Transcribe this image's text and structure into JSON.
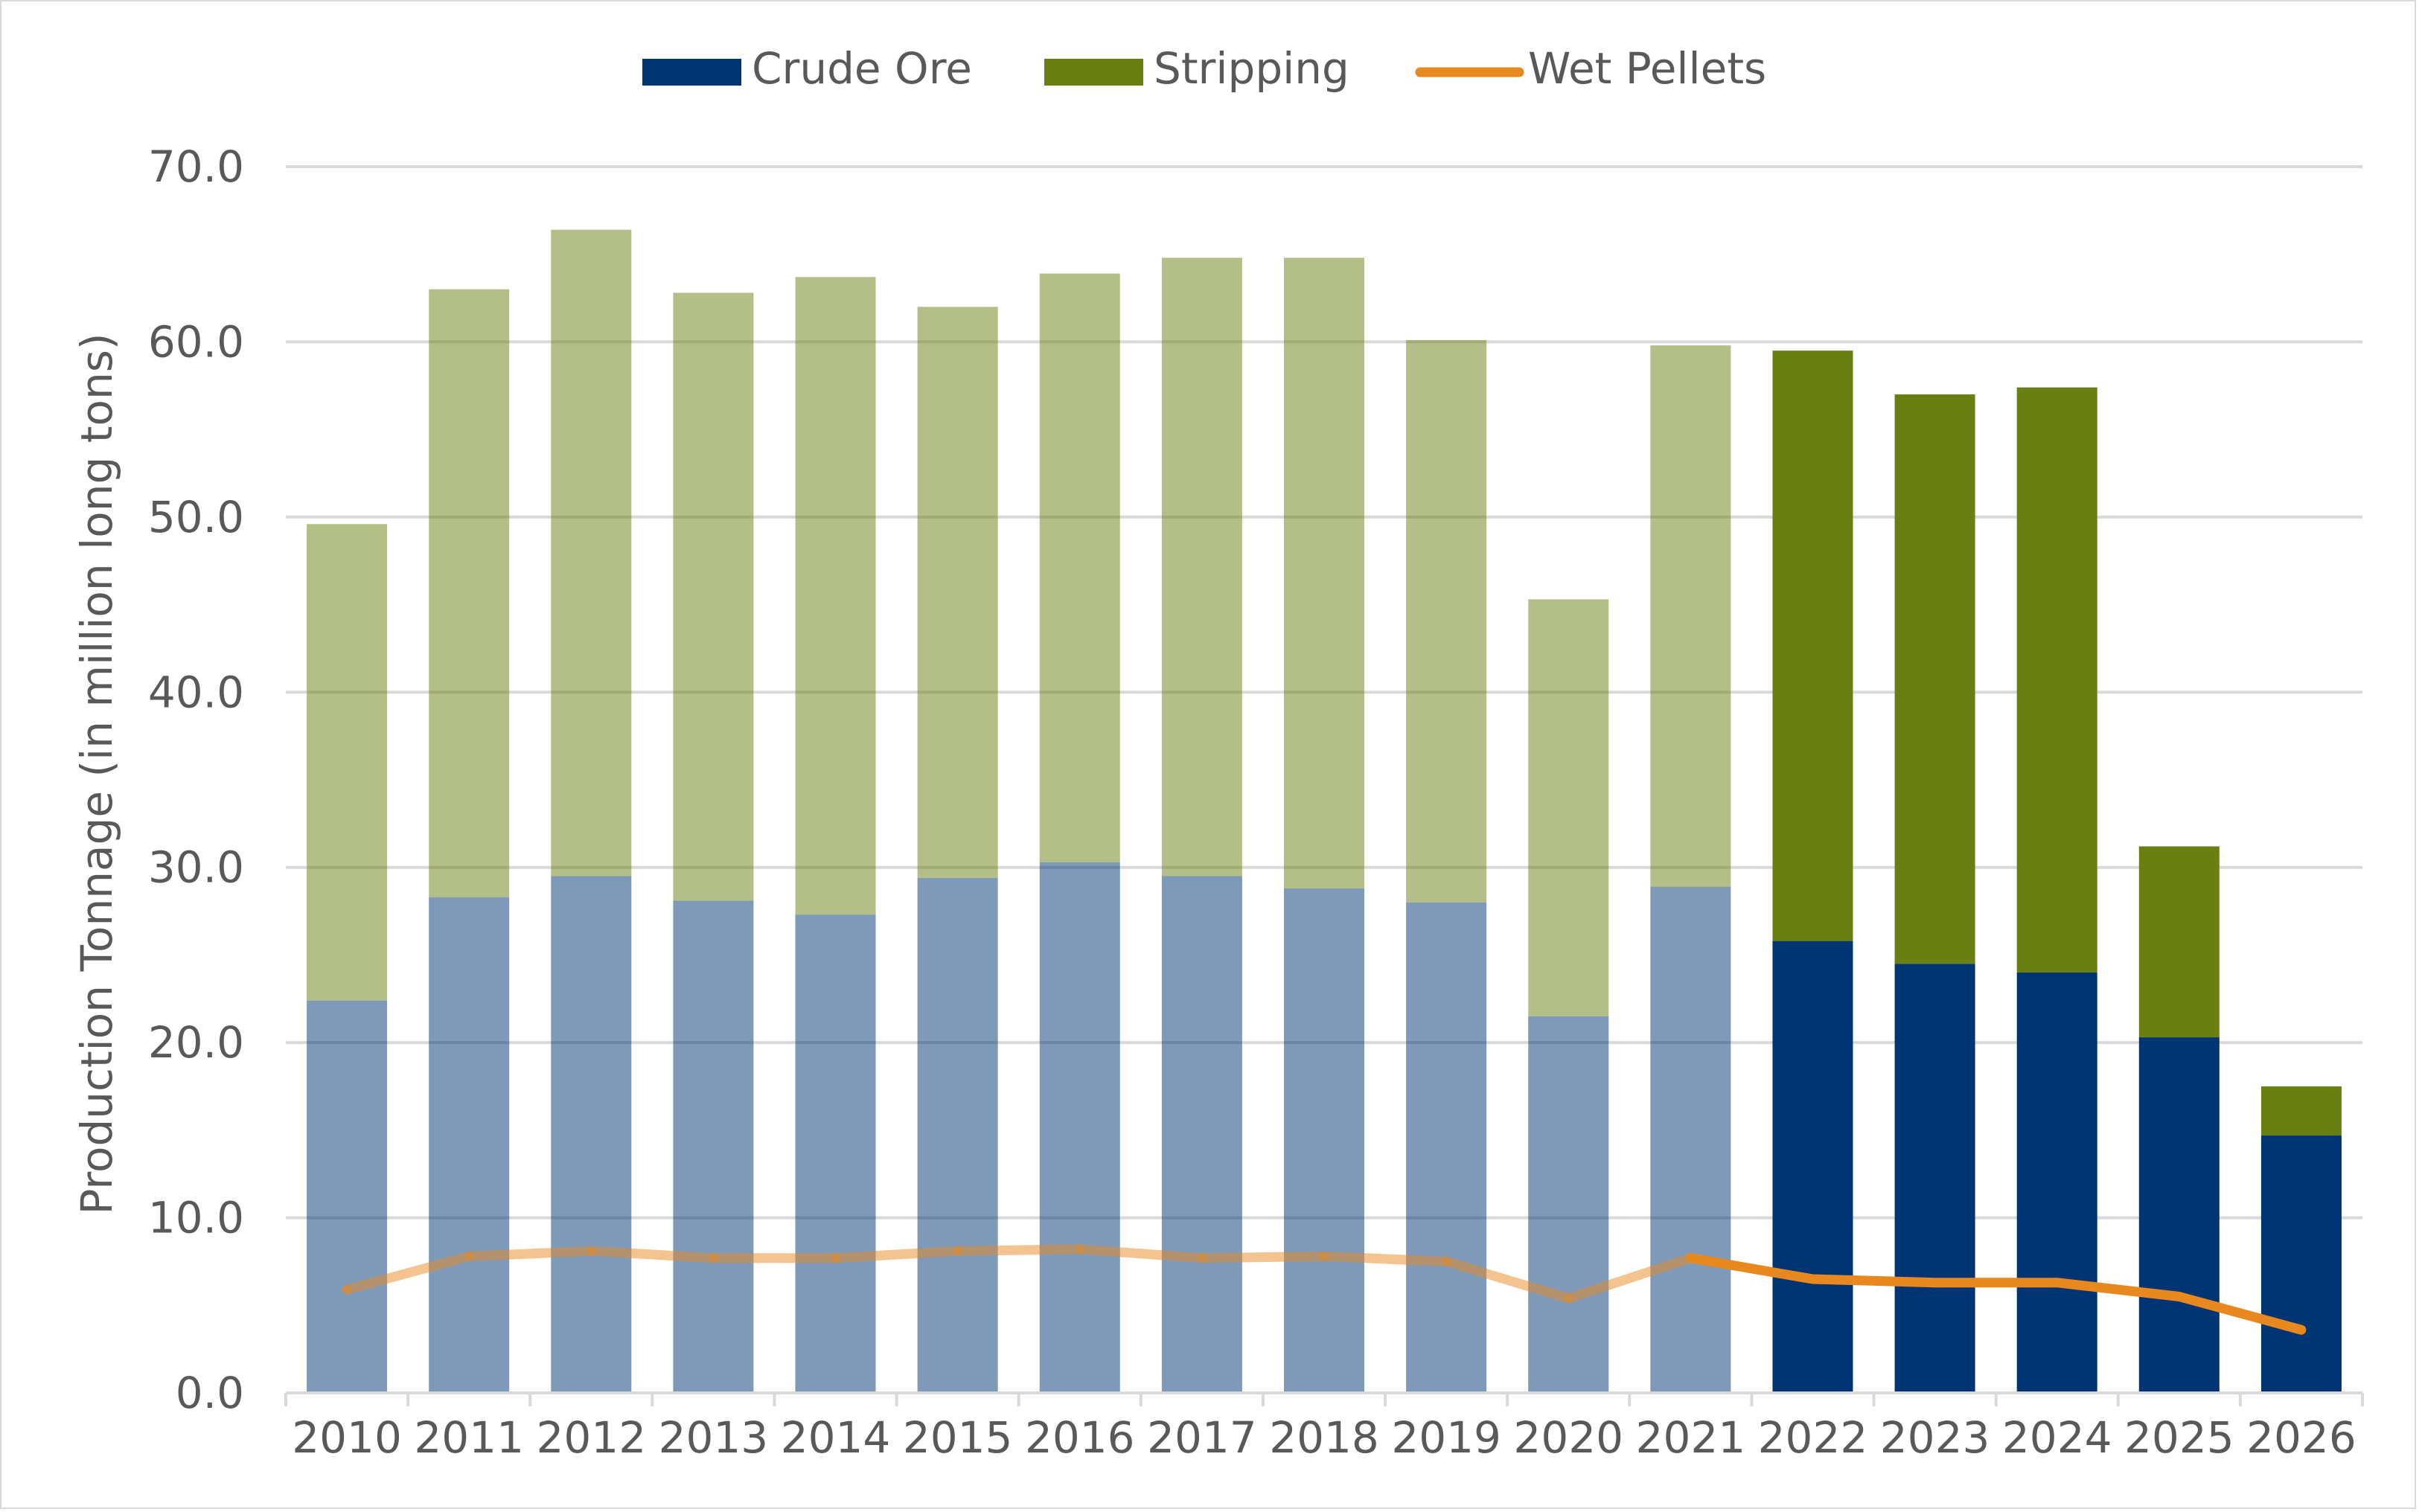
{
  "chart_data": {
    "type": "bar",
    "stacked": true,
    "categories": [
      "2010",
      "2011",
      "2012",
      "2013",
      "2014",
      "2015",
      "2016",
      "2017",
      "2018",
      "2019",
      "2020",
      "2021",
      "2022",
      "2023",
      "2024",
      "2025",
      "2026"
    ],
    "highlighted_from": "2022",
    "series": [
      {
        "name": "Crude Ore",
        "type": "bar",
        "color": "#003473",
        "values": [
          22.4,
          28.3,
          29.5,
          28.1,
          27.3,
          29.4,
          30.3,
          29.5,
          28.8,
          28.0,
          21.5,
          28.9,
          25.8,
          24.5,
          24.0,
          20.3,
          14.7
        ]
      },
      {
        "name": "Stripping",
        "type": "bar",
        "color": "#6a7f12",
        "values": [
          27.2,
          34.7,
          36.9,
          34.7,
          36.4,
          32.6,
          33.6,
          35.3,
          36.0,
          32.1,
          23.8,
          30.9,
          33.7,
          32.5,
          33.4,
          10.9,
          2.8
        ]
      },
      {
        "name": "Wet Pellets",
        "type": "line",
        "color": "#e8891f",
        "values": [
          5.9,
          7.8,
          8.1,
          7.7,
          7.7,
          8.1,
          8.2,
          7.7,
          7.8,
          7.5,
          5.4,
          7.7,
          6.5,
          6.3,
          6.3,
          5.5,
          3.6
        ]
      }
    ],
    "faded_opacity": 0.5,
    "ylabel": "Production Tonnage (in million long tons)",
    "xlabel": "",
    "ylim": [
      0,
      70
    ],
    "yticks": [
      "0.0",
      "10.0",
      "20.0",
      "30.0",
      "40.0",
      "50.0",
      "60.0",
      "70.0"
    ],
    "ytick_values": [
      0,
      10,
      20,
      30,
      40,
      50,
      60,
      70
    ],
    "grid": true,
    "legend_position": "top-center"
  }
}
